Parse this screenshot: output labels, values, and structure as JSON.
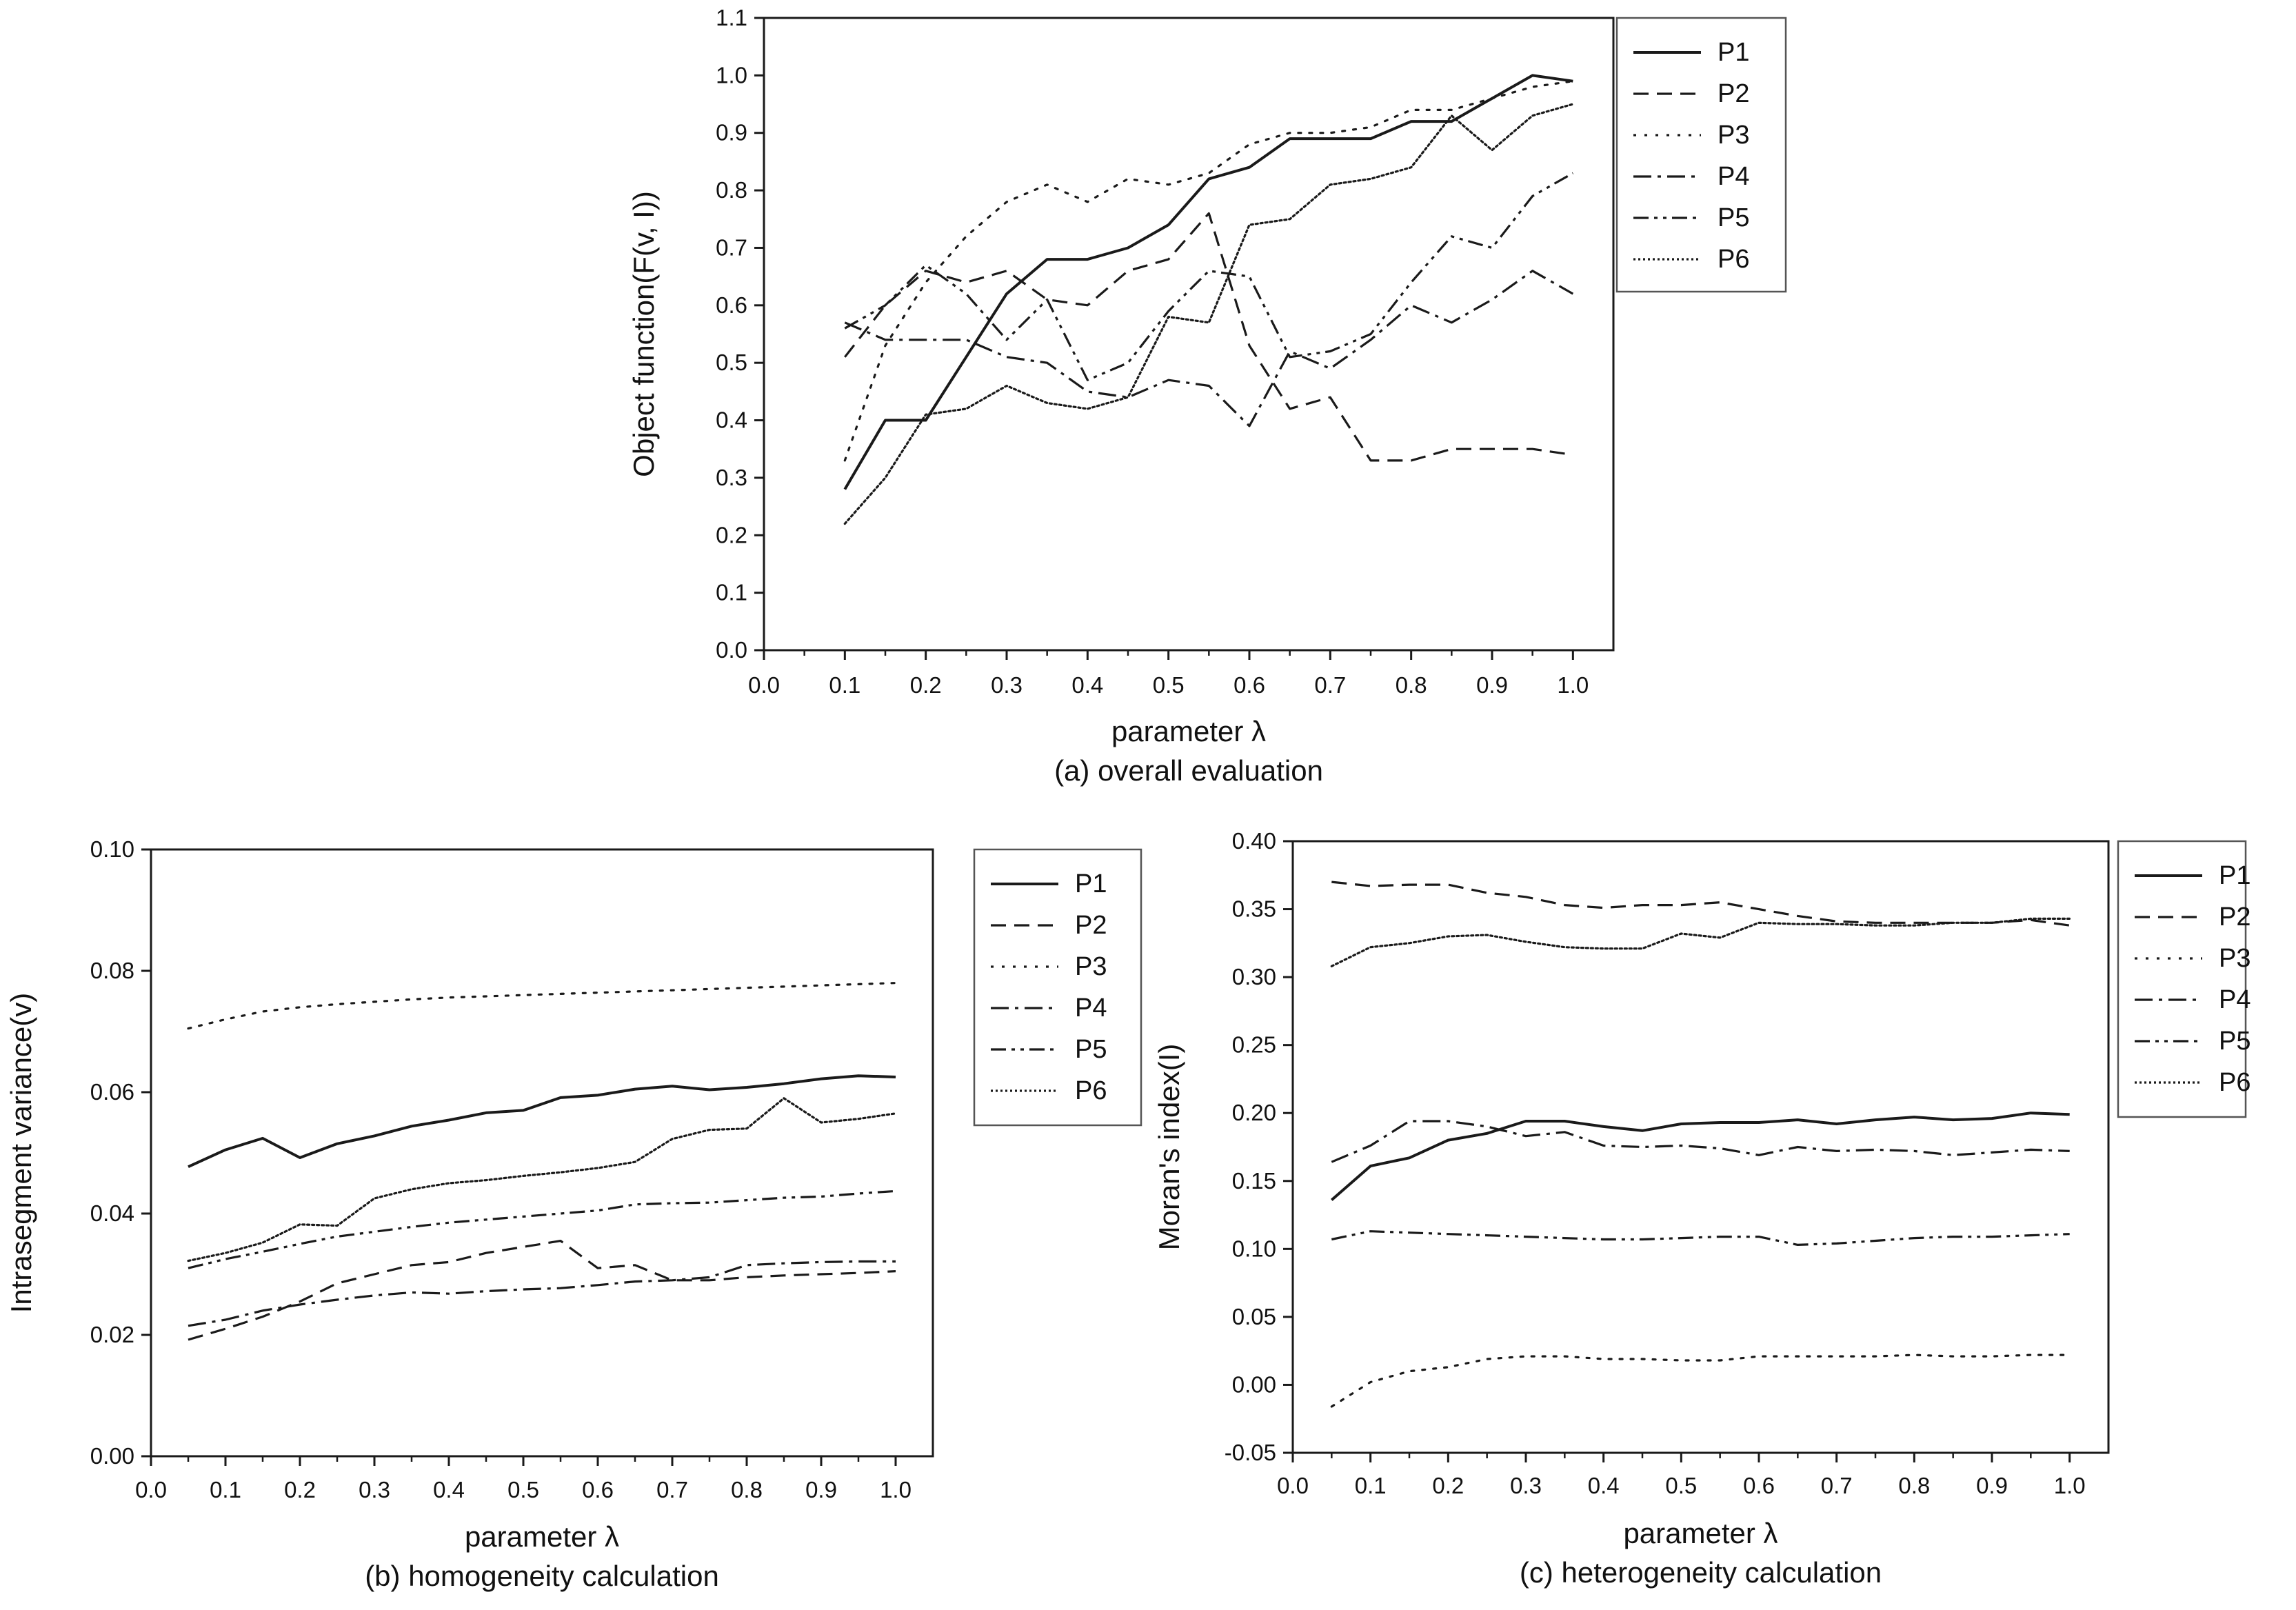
{
  "chart_data": [
    {
      "type": "line",
      "panel": "a",
      "caption": "(a) overall evaluation",
      "xlabel": "parameter λ",
      "ylabel": "Object function(F(v, I))",
      "xlim": [
        0,
        1.05
      ],
      "ylim": [
        0,
        1.1
      ],
      "x_ticks": [
        "0.0",
        "0.1",
        "0.2",
        "0.3",
        "0.4",
        "0.5",
        "0.6",
        "0.7",
        "0.8",
        "0.9",
        "1.0"
      ],
      "y_ticks": [
        "0.0",
        "0.1",
        "0.2",
        "0.3",
        "0.4",
        "0.5",
        "0.6",
        "0.7",
        "0.8",
        "0.9",
        "1.0",
        "1.1"
      ],
      "legend_position": "right-outside-top",
      "grid": false,
      "x": [
        0.1,
        0.15,
        0.2,
        0.25,
        0.3,
        0.35,
        0.4,
        0.45,
        0.5,
        0.55,
        0.6,
        0.65,
        0.7,
        0.75,
        0.8,
        0.85,
        0.9,
        0.95,
        1.0
      ],
      "series": [
        {
          "name": "P1",
          "style": "solid",
          "values": [
            0.28,
            0.4,
            0.4,
            0.51,
            0.62,
            0.68,
            0.68,
            0.7,
            0.74,
            0.82,
            0.84,
            0.89,
            0.89,
            0.89,
            0.92,
            0.92,
            0.96,
            1.0,
            0.99
          ]
        },
        {
          "name": "P2",
          "style": "dashed",
          "values": [
            0.51,
            0.6,
            0.66,
            0.64,
            0.66,
            0.61,
            0.6,
            0.66,
            0.68,
            0.76,
            0.53,
            0.42,
            0.44,
            0.33,
            0.33,
            0.35,
            0.35,
            0.35,
            0.34
          ]
        },
        {
          "name": "P3",
          "style": "dotted",
          "values": [
            0.33,
            0.53,
            0.64,
            0.72,
            0.78,
            0.81,
            0.78,
            0.82,
            0.81,
            0.83,
            0.88,
            0.9,
            0.9,
            0.91,
            0.94,
            0.94,
            0.96,
            0.98,
            0.99
          ]
        },
        {
          "name": "P4",
          "style": "dashdot",
          "values": [
            0.57,
            0.54,
            0.54,
            0.54,
            0.51,
            0.5,
            0.45,
            0.44,
            0.47,
            0.46,
            0.39,
            0.52,
            0.49,
            0.54,
            0.6,
            0.57,
            0.61,
            0.66,
            0.62
          ]
        },
        {
          "name": "P5",
          "style": "dashdotdot",
          "values": [
            0.56,
            0.6,
            0.67,
            0.62,
            0.54,
            0.61,
            0.47,
            0.5,
            0.59,
            0.66,
            0.65,
            0.51,
            0.52,
            0.55,
            0.64,
            0.72,
            0.7,
            0.79,
            0.83
          ]
        },
        {
          "name": "P6",
          "style": "densedot",
          "values": [
            0.22,
            0.3,
            0.41,
            0.42,
            0.46,
            0.43,
            0.42,
            0.44,
            0.58,
            0.57,
            0.74,
            0.75,
            0.81,
            0.82,
            0.84,
            0.93,
            0.87,
            0.93,
            0.95
          ]
        }
      ]
    },
    {
      "type": "line",
      "panel": "b",
      "caption": "(b) homogeneity calculation",
      "xlabel": "parameter λ",
      "ylabel": "Intrasegment  variance(v)",
      "xlim": [
        0,
        1.05
      ],
      "ylim": [
        0,
        0.1
      ],
      "x_ticks": [
        "0.0",
        "0.1",
        "0.2",
        "0.3",
        "0.4",
        "0.5",
        "0.6",
        "0.7",
        "0.8",
        "0.9",
        "1.0"
      ],
      "y_ticks": [
        "0.00",
        "0.02",
        "0.04",
        "0.06",
        "0.08",
        "0.10"
      ],
      "legend_position": "right-outside-top",
      "grid": false,
      "x": [
        0.05,
        0.1,
        0.15,
        0.2,
        0.25,
        0.3,
        0.35,
        0.4,
        0.45,
        0.5,
        0.55,
        0.6,
        0.65,
        0.7,
        0.75,
        0.8,
        0.85,
        0.9,
        0.95,
        1.0
      ],
      "series": [
        {
          "name": "P1",
          "style": "solid",
          "values": [
            0.0477,
            0.0505,
            0.0524,
            0.0492,
            0.0515,
            0.0528,
            0.0544,
            0.0554,
            0.0566,
            0.057,
            0.0591,
            0.0595,
            0.0605,
            0.061,
            0.0604,
            0.0608,
            0.0614,
            0.0622,
            0.0627,
            0.0625
          ]
        },
        {
          "name": "P2",
          "style": "dashed",
          "values": [
            0.0192,
            0.021,
            0.023,
            0.0255,
            0.0285,
            0.03,
            0.0315,
            0.032,
            0.0335,
            0.0345,
            0.0355,
            0.031,
            0.0315,
            0.029,
            0.029,
            0.0295,
            0.0298,
            0.03,
            0.0302,
            0.0305
          ]
        },
        {
          "name": "P3",
          "style": "dotted",
          "values": [
            0.0705,
            0.072,
            0.0733,
            0.074,
            0.0745,
            0.0749,
            0.0753,
            0.0756,
            0.0758,
            0.076,
            0.0762,
            0.0764,
            0.0766,
            0.0768,
            0.077,
            0.0772,
            0.0774,
            0.0776,
            0.0778,
            0.078
          ]
        },
        {
          "name": "P4",
          "style": "dashdot",
          "values": [
            0.0215,
            0.0225,
            0.024,
            0.025,
            0.0258,
            0.0265,
            0.027,
            0.0268,
            0.0272,
            0.0275,
            0.0277,
            0.0282,
            0.0288,
            0.029,
            0.0295,
            0.0315,
            0.0318,
            0.032,
            0.0321,
            0.0321
          ]
        },
        {
          "name": "P5",
          "style": "dashdotdot",
          "values": [
            0.031,
            0.0325,
            0.0337,
            0.035,
            0.0362,
            0.037,
            0.0378,
            0.0385,
            0.039,
            0.0395,
            0.04,
            0.0405,
            0.0415,
            0.0417,
            0.0418,
            0.0422,
            0.0426,
            0.0428,
            0.0433,
            0.0437
          ]
        },
        {
          "name": "P6",
          "style": "densedot",
          "values": [
            0.0322,
            0.0335,
            0.0352,
            0.0382,
            0.038,
            0.0425,
            0.044,
            0.045,
            0.0455,
            0.0462,
            0.0468,
            0.0475,
            0.0485,
            0.0523,
            0.0538,
            0.054,
            0.059,
            0.055,
            0.0556,
            0.0565
          ]
        }
      ]
    },
    {
      "type": "line",
      "panel": "c",
      "caption": "(c) heterogeneity calculation",
      "xlabel": "parameter λ",
      "ylabel": "Moran's index(I)",
      "xlim": [
        0,
        1.05
      ],
      "ylim": [
        -0.05,
        0.4
      ],
      "x_ticks": [
        "0.0",
        "0.1",
        "0.2",
        "0.3",
        "0.4",
        "0.5",
        "0.6",
        "0.7",
        "0.8",
        "0.9",
        "1.0"
      ],
      "y_ticks": [
        "-0.05",
        "0.00",
        "0.05",
        "0.10",
        "0.15",
        "0.20",
        "0.25",
        "0.30",
        "0.35",
        "0.40"
      ],
      "legend_position": "right-outside-top",
      "grid": false,
      "x": [
        0.05,
        0.1,
        0.15,
        0.2,
        0.25,
        0.3,
        0.35,
        0.4,
        0.45,
        0.5,
        0.55,
        0.6,
        0.65,
        0.7,
        0.75,
        0.8,
        0.85,
        0.9,
        0.95,
        1.0
      ],
      "series": [
        {
          "name": "P1",
          "style": "solid",
          "values": [
            0.136,
            0.161,
            0.167,
            0.18,
            0.185,
            0.194,
            0.194,
            0.19,
            0.187,
            0.192,
            0.193,
            0.193,
            0.195,
            0.192,
            0.195,
            0.197,
            0.195,
            0.196,
            0.2,
            0.199
          ]
        },
        {
          "name": "P2",
          "style": "dashed",
          "values": [
            0.37,
            0.367,
            0.368,
            0.368,
            0.362,
            0.359,
            0.353,
            0.351,
            0.353,
            0.353,
            0.355,
            0.35,
            0.345,
            0.341,
            0.34,
            0.34,
            0.34,
            0.34,
            0.342,
            0.338
          ]
        },
        {
          "name": "P3",
          "style": "dotted",
          "values": [
            -0.016,
            0.002,
            0.01,
            0.013,
            0.019,
            0.021,
            0.021,
            0.019,
            0.019,
            0.018,
            0.018,
            0.021,
            0.021,
            0.021,
            0.021,
            0.022,
            0.021,
            0.021,
            0.022,
            0.022
          ]
        },
        {
          "name": "P4",
          "style": "dashdot",
          "values": [
            0.164,
            0.176,
            0.194,
            0.194,
            0.19,
            0.183,
            0.186,
            0.176,
            0.175,
            0.176,
            0.174,
            0.169,
            0.175,
            0.172,
            0.173,
            0.172,
            0.169,
            0.171,
            0.173,
            0.172
          ]
        },
        {
          "name": "P5",
          "style": "dashdotdot",
          "values": [
            0.107,
            0.113,
            0.112,
            0.111,
            0.11,
            0.109,
            0.108,
            0.107,
            0.107,
            0.108,
            0.109,
            0.109,
            0.103,
            0.104,
            0.106,
            0.108,
            0.109,
            0.109,
            0.11,
            0.111
          ]
        },
        {
          "name": "P6",
          "style": "densedot",
          "values": [
            0.308,
            0.322,
            0.325,
            0.33,
            0.331,
            0.326,
            0.322,
            0.321,
            0.321,
            0.332,
            0.329,
            0.34,
            0.339,
            0.339,
            0.338,
            0.338,
            0.34,
            0.34,
            0.343,
            0.343
          ]
        }
      ]
    }
  ]
}
